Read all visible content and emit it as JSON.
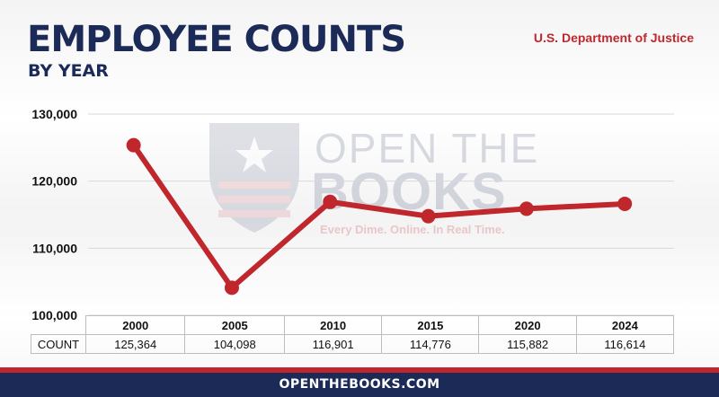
{
  "header": {
    "title": "EMPLOYEE COUNTS",
    "subtitle": "BY YEAR",
    "source": "U.S. Department of Justice"
  },
  "watermark": {
    "line1": "OPEN THE",
    "line2": "BOOKS",
    "tagline": "Every Dime. Online. In Real Time."
  },
  "chart_data": {
    "type": "line",
    "title": "EMPLOYEE COUNTS",
    "subtitle": "BY YEAR",
    "xlabel": "",
    "ylabel": "",
    "categories": [
      "2000",
      "2005",
      "2010",
      "2015",
      "2020",
      "2024"
    ],
    "series": [
      {
        "name": "COUNT",
        "values": [
          125364,
          104098,
          116901,
          114776,
          115882,
          116614
        ],
        "color": "#c0272d"
      }
    ],
    "ylim": [
      100000,
      130000
    ],
    "yticks": [
      100000,
      110000,
      120000,
      130000
    ],
    "ytick_labels": [
      "100,000",
      "110,000",
      "120,000",
      "130,000"
    ],
    "grid": true,
    "legend": "none"
  },
  "table": {
    "row_label": "COUNT",
    "years": [
      "2000",
      "2005",
      "2010",
      "2015",
      "2020",
      "2024"
    ],
    "counts": [
      "125,364",
      "104,098",
      "116,901",
      "114,776",
      "115,882",
      "116,614"
    ]
  },
  "footer": {
    "text": "OPENTHEBOOKS.COM"
  },
  "colors": {
    "navy": "#1b2a57",
    "red": "#c0272d",
    "grid": "#d9d9d9"
  }
}
